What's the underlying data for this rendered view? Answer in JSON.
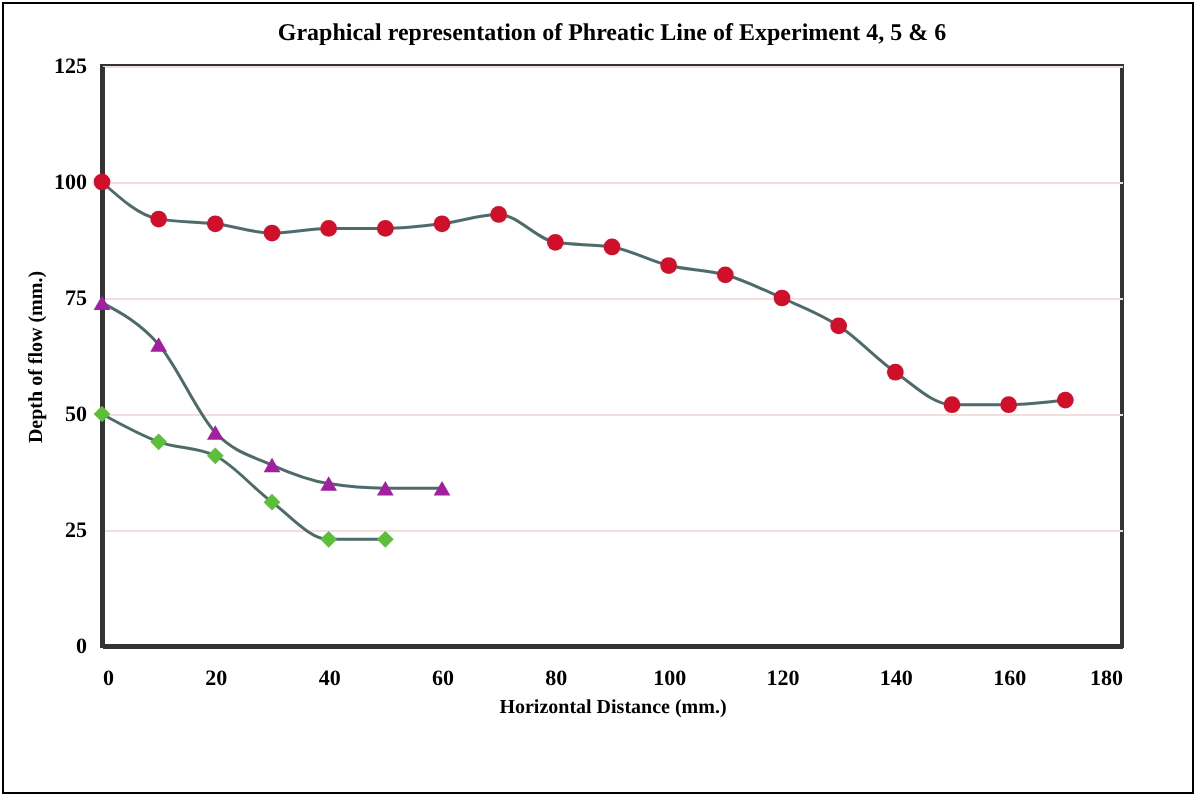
{
  "chart_data": {
    "type": "line",
    "title": "Graphical representation of  Phreatic Line of Experiment 4, 5 &  6",
    "xlabel": "Horizontal Distance (mm.)",
    "ylabel": "Depth of flow (mm.)",
    "xlim": [
      0,
      180
    ],
    "xticks": [
      0,
      20,
      40,
      60,
      80,
      100,
      120,
      140,
      160,
      180
    ],
    "ylim": [
      0,
      125
    ],
    "yticks": [
      0,
      25,
      50,
      75,
      100,
      125
    ],
    "grid": "y",
    "series": [
      {
        "color": "#d0102a",
        "marker": "circle",
        "x": [
          0,
          10,
          20,
          30,
          40,
          50,
          60,
          70,
          80,
          90,
          100,
          110,
          120,
          130,
          140,
          150,
          160,
          170
        ],
        "values": [
          100,
          92,
          91,
          89,
          90,
          90,
          91,
          93,
          87,
          86,
          82,
          80,
          75,
          69,
          59,
          52,
          52,
          53
        ]
      },
      {
        "color": "#a020a0",
        "marker": "triangle",
        "x": [
          0,
          10,
          20,
          30,
          40,
          50,
          60
        ],
        "values": [
          74,
          65,
          46,
          39,
          35,
          34,
          34
        ]
      },
      {
        "color": "#5cbf3a",
        "marker": "diamond",
        "x": [
          0,
          10,
          20,
          30,
          40,
          50
        ],
        "values": [
          50,
          44,
          41,
          31,
          23,
          23
        ]
      }
    ]
  }
}
